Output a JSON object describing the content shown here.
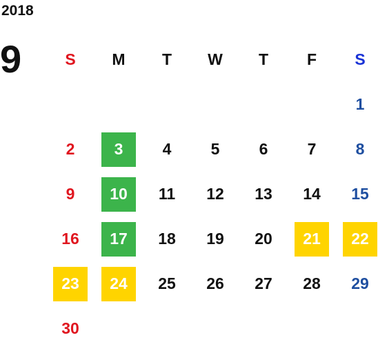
{
  "year": "2018",
  "month": "9",
  "weekdays": [
    "S",
    "M",
    "T",
    "W",
    "T",
    "F",
    "S"
  ],
  "weeks": [
    [
      "",
      "",
      "",
      "",
      "",
      "",
      "1"
    ],
    [
      "2",
      "3",
      "4",
      "5",
      "6",
      "7",
      "8"
    ],
    [
      "9",
      "10",
      "11",
      "12",
      "13",
      "14",
      "15"
    ],
    [
      "16",
      "17",
      "18",
      "19",
      "20",
      "21",
      "22"
    ],
    [
      "23",
      "24",
      "25",
      "26",
      "27",
      "28",
      "29"
    ],
    [
      "30",
      "",
      "",
      "",
      "",
      "",
      ""
    ]
  ],
  "highlight_colors": {
    "green": "#3cb44b",
    "yellow": "#ffd400",
    "sunday": "#e0161f",
    "saturday": "#1f4fa0"
  },
  "highlighted_days": {
    "green": [
      "3",
      "10",
      "17"
    ],
    "yellow": [
      "21",
      "22",
      "23",
      "24"
    ]
  }
}
